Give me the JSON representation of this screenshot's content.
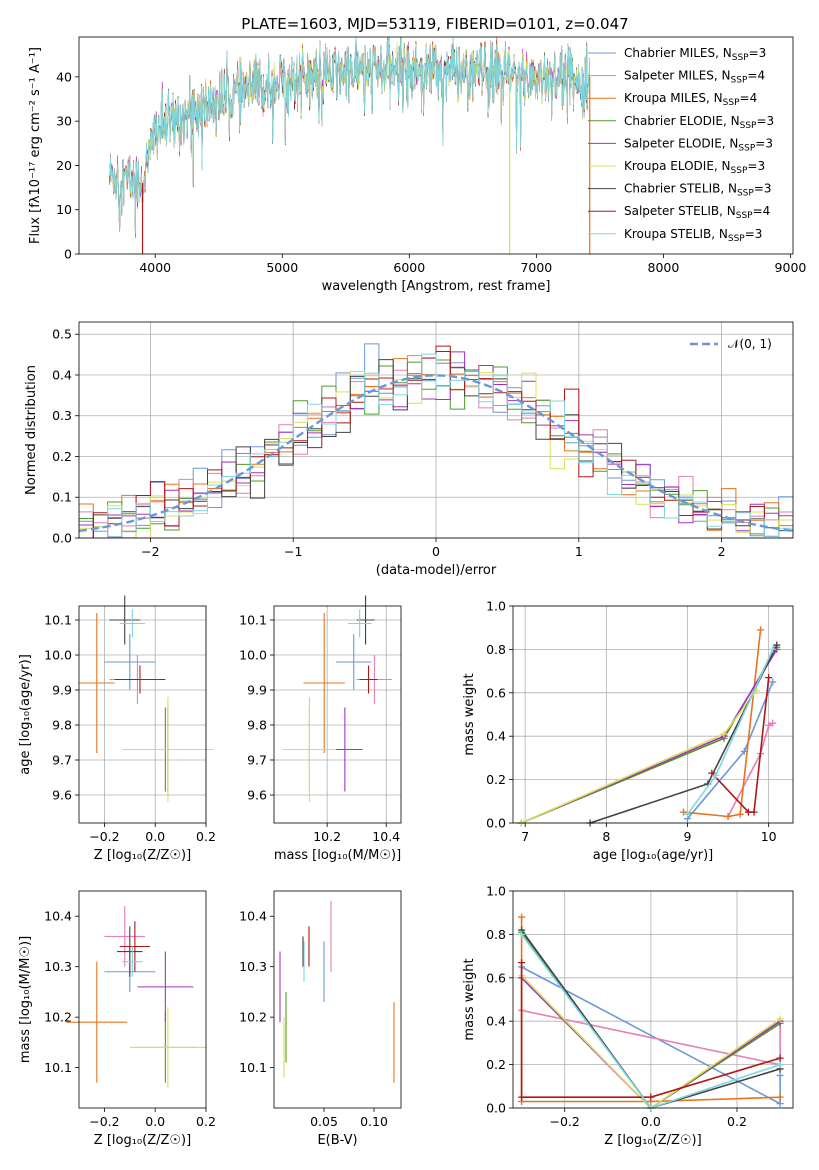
{
  "title": "PLATE=1603, MJD=53119, FIBERID=0101, z=0.047",
  "models": [
    {
      "name": "Chabrier MILES",
      "nssp": "3",
      "color": "#6b97d8"
    },
    {
      "name": "Salpeter MILES",
      "nssp": "4",
      "color": "#e57fb6"
    },
    {
      "name": "Kroupa MILES",
      "nssp": "4",
      "color": "#e8731c"
    },
    {
      "name": "Chabrier ELODIE",
      "nssp": "3",
      "color": "#4f9a2e"
    },
    {
      "name": "Salpeter ELODIE",
      "nssp": "3",
      "color": "#a531c2"
    },
    {
      "name": "Kroupa ELODIE",
      "nssp": "3",
      "color": "#d9e057"
    },
    {
      "name": "Chabrier STELIB",
      "nssp": "3",
      "color": "#444444"
    },
    {
      "name": "Salpeter STELIB",
      "nssp": "4",
      "color": "#b01818"
    },
    {
      "name": "Kroupa STELIB",
      "nssp": "3",
      "color": "#7dd6e0"
    }
  ],
  "legend_nssp_prefix": "N",
  "legend_nssp_sub": "SSP",
  "chart_data": [
    {
      "id": "spectrum",
      "type": "line",
      "xlabel": "wavelength [Angstrom, rest frame]",
      "ylabel": "Flux [fλ10⁻¹⁷ erg cm⁻² s⁻¹ A⁻¹]",
      "xlim": [
        3400,
        9020
      ],
      "ylim": [
        0,
        49
      ],
      "xticks": [
        4000,
        5000,
        6000,
        7000,
        8000,
        9000
      ],
      "yticks": [
        0,
        10,
        20,
        30,
        40
      ],
      "x_range_data": [
        3640,
        7420
      ],
      "continuum_anchor_points": [
        [
          3640,
          18
        ],
        [
          3900,
          16
        ],
        [
          4000,
          28
        ],
        [
          4300,
          32
        ],
        [
          4600,
          36
        ],
        [
          5000,
          39
        ],
        [
          5500,
          41
        ],
        [
          6000,
          42
        ],
        [
          6500,
          41
        ],
        [
          7000,
          40
        ],
        [
          7420,
          40
        ]
      ],
      "spikes": [
        [
          3900,
          0
        ],
        [
          6790,
          0
        ],
        [
          7420,
          0
        ]
      ],
      "legend_placement": "top-right",
      "grid": false
    },
    {
      "id": "residuals",
      "type": "histogram",
      "xlabel": "(data-model)/error",
      "ylabel": "Normed distribution",
      "xlim": [
        -2.5,
        2.5
      ],
      "ylim": [
        0,
        0.53
      ],
      "xticks": [
        -2,
        -1,
        0,
        1,
        2
      ],
      "yticks": [
        0.0,
        0.1,
        0.2,
        0.3,
        0.4,
        0.5
      ],
      "reference_curve": "𝒩(0, 1)",
      "reference_color": "#6b97d8",
      "bin_width": 0.1,
      "legend_placement": "top-right",
      "grid": true
    },
    {
      "id": "age_vs_Z",
      "type": "errorbar",
      "xlabel": "Z [log₁₀(Z/Z☉)]",
      "ylabel": "age  [log₁₀(age/yr)]",
      "xlim": [
        -0.3,
        0.2
      ],
      "ylim": [
        9.52,
        10.14
      ],
      "xticks": [
        -0.2,
        0.0,
        0.2
      ],
      "yticks": [
        9.6,
        9.7,
        9.8,
        9.9,
        10.0,
        10.1
      ],
      "points": [
        {
          "x": -0.1,
          "y": 9.98,
          "xerr": 0.1,
          "yerr": 0.08
        },
        {
          "x": -0.07,
          "y": 9.93,
          "xerr": 0.11,
          "yerr": 0.07
        },
        {
          "x": -0.23,
          "y": 9.92,
          "xerr": 0.07,
          "yerr": 0.2
        },
        {
          "x": 0.04,
          "y": 9.73,
          "xerr": 0.16,
          "yerr": 0.12
        },
        {
          "x": 0.05,
          "y": 9.73,
          "xerr": 0.13,
          "yerr": 0.12
        },
        {
          "x": 0.05,
          "y": 9.73,
          "xerr": 0.18,
          "yerr": 0.15
        },
        {
          "x": -0.12,
          "y": 10.1,
          "xerr": 0.06,
          "yerr": 0.07
        },
        {
          "x": -0.06,
          "y": 9.93,
          "xerr": 0.1,
          "yerr": 0.04
        },
        {
          "x": -0.09,
          "y": 10.09,
          "xerr": 0.05,
          "yerr": 0.04
        }
      ],
      "grid": true
    },
    {
      "id": "age_vs_mass",
      "type": "errorbar",
      "xlabel": "mass [log₁₀(M/M☉)]",
      "ylabel": "",
      "xlim": [
        10.02,
        10.45
      ],
      "ylim": [
        9.52,
        10.14
      ],
      "xticks": [
        10.2,
        10.4
      ],
      "yticks": [
        9.6,
        9.7,
        9.8,
        9.9,
        10.0,
        10.1
      ],
      "points": [
        {
          "x": 10.29,
          "y": 9.98,
          "xerr": 0.06,
          "yerr": 0.08
        },
        {
          "x": 10.36,
          "y": 9.93,
          "xerr": 0.06,
          "yerr": 0.07
        },
        {
          "x": 10.19,
          "y": 9.92,
          "xerr": 0.07,
          "yerr": 0.2
        },
        {
          "x": 10.14,
          "y": 9.73,
          "xerr": 0.09,
          "yerr": 0.12
        },
        {
          "x": 10.26,
          "y": 9.73,
          "xerr": 0.06,
          "yerr": 0.12
        },
        {
          "x": 10.14,
          "y": 9.73,
          "xerr": 0.09,
          "yerr": 0.15
        },
        {
          "x": 10.33,
          "y": 10.1,
          "xerr": 0.03,
          "yerr": 0.07
        },
        {
          "x": 10.34,
          "y": 9.93,
          "xerr": 0.03,
          "yerr": 0.04
        },
        {
          "x": 10.31,
          "y": 10.09,
          "xerr": 0.04,
          "yerr": 0.04
        }
      ],
      "grid": true
    },
    {
      "id": "mass_weight_vs_age",
      "type": "line",
      "xlabel": "age  [log₁₀(age/yr)]",
      "ylabel": "mass weight",
      "xlim": [
        6.85,
        10.3
      ],
      "ylim": [
        0,
        1.0
      ],
      "xticks": [
        7,
        8,
        9,
        10
      ],
      "yticks": [
        0.0,
        0.2,
        0.4,
        0.6,
        0.8,
        1.0
      ],
      "series": [
        {
          "x": [
            9.0,
            9.7,
            10.05
          ],
          "y": [
            0.02,
            0.33,
            0.65
          ]
        },
        {
          "x": [
            9.5,
            9.9,
            10.0,
            10.05
          ],
          "y": [
            0.03,
            0.32,
            0.45,
            0.46
          ]
        },
        {
          "x": [
            8.95,
            9.5,
            9.65,
            9.9
          ],
          "y": [
            0.05,
            0.03,
            0.04,
            0.89
          ]
        },
        {
          "x": [
            6.95,
            9.45,
            10.1
          ],
          "y": [
            0.0,
            0.39,
            0.81
          ]
        },
        {
          "x": [
            6.95,
            9.45,
            10.1
          ],
          "y": [
            0.0,
            0.4,
            0.8
          ]
        },
        {
          "x": [
            6.95,
            9.45,
            9.85
          ],
          "y": [
            0.0,
            0.41,
            0.61
          ]
        },
        {
          "x": [
            7.8,
            9.25,
            10.1
          ],
          "y": [
            0.0,
            0.18,
            0.82
          ]
        },
        {
          "x": [
            9.3,
            9.75,
            9.82,
            10.0
          ],
          "y": [
            0.23,
            0.05,
            0.05,
            0.67
          ]
        },
        {
          "x": [
            9.0,
            9.35,
            10.05
          ],
          "y": [
            0.04,
            0.22,
            0.8
          ]
        }
      ],
      "grid": true
    },
    {
      "id": "mass_vs_Z",
      "type": "errorbar",
      "xlabel": "Z [log₁₀(Z/Z☉)]",
      "ylabel": "mass [log₁₀(M/M☉)]",
      "xlim": [
        -0.3,
        0.2
      ],
      "ylim": [
        10.02,
        10.45
      ],
      "xticks": [
        -0.2,
        0.0,
        0.2
      ],
      "yticks": [
        10.1,
        10.2,
        10.3,
        10.4
      ],
      "points": [
        {
          "x": -0.1,
          "y": 10.29,
          "xerr": 0.1,
          "yerr": 0.04
        },
        {
          "x": -0.12,
          "y": 10.36,
          "xerr": 0.08,
          "yerr": 0.06
        },
        {
          "x": -0.23,
          "y": 10.19,
          "xerr": 0.12,
          "yerr": 0.12
        },
        {
          "x": 0.04,
          "y": 10.14,
          "xerr": 0.12,
          "yerr": 0.07
        },
        {
          "x": 0.04,
          "y": 10.26,
          "xerr": 0.11,
          "yerr": 0.07
        },
        {
          "x": 0.05,
          "y": 10.14,
          "xerr": 0.15,
          "yerr": 0.08
        },
        {
          "x": -0.1,
          "y": 10.33,
          "xerr": 0.05,
          "yerr": 0.05
        },
        {
          "x": -0.08,
          "y": 10.34,
          "xerr": 0.06,
          "yerr": 0.05
        },
        {
          "x": -0.09,
          "y": 10.31,
          "xerr": 0.04,
          "yerr": 0.03
        }
      ],
      "grid": false
    },
    {
      "id": "mass_vs_EBV",
      "type": "errorbar",
      "xlabel": "E(B-V)",
      "ylabel": "",
      "xlim": [
        0.0,
        0.127
      ],
      "ylim": [
        10.02,
        10.45
      ],
      "xticks": [
        0.05,
        0.1
      ],
      "yticks": [
        10.1,
        10.2,
        10.3,
        10.4
      ],
      "points": [
        {
          "x": 0.05,
          "y": 10.29,
          "xerr": 0.0,
          "yerr": 0.06
        },
        {
          "x": 0.057,
          "y": 10.36,
          "xerr": 0.0,
          "yerr": 0.07
        },
        {
          "x": 0.12,
          "y": 10.15,
          "xerr": 0.0,
          "yerr": 0.08
        },
        {
          "x": 0.012,
          "y": 10.18,
          "xerr": 0.0,
          "yerr": 0.07
        },
        {
          "x": 0.006,
          "y": 10.26,
          "xerr": 0.0,
          "yerr": 0.07
        },
        {
          "x": 0.01,
          "y": 10.14,
          "xerr": 0.0,
          "yerr": 0.06
        },
        {
          "x": 0.029,
          "y": 10.33,
          "xerr": 0.0,
          "yerr": 0.03
        },
        {
          "x": 0.035,
          "y": 10.34,
          "xerr": 0.0,
          "yerr": 0.04
        },
        {
          "x": 0.03,
          "y": 10.31,
          "xerr": 0.0,
          "yerr": 0.04
        }
      ],
      "grid": false
    },
    {
      "id": "mass_weight_vs_Z",
      "type": "line",
      "xlabel": "Z [log₁₀(Z/Z☉)]",
      "ylabel": "mass weight",
      "xlim": [
        -0.32,
        0.33
      ],
      "ylim": [
        0,
        1.0
      ],
      "xticks": [
        -0.2,
        0.0,
        0.2
      ],
      "yticks": [
        0.0,
        0.2,
        0.4,
        0.6,
        0.8,
        1.0
      ],
      "series": [
        {
          "x": [
            -0.3,
            0.3,
            0.3
          ],
          "y": [
            0.65,
            0.02,
            0.15
          ]
        },
        {
          "x": [
            -0.3,
            0.3,
            0.3,
            0.0
          ],
          "y": [
            0.45,
            0.2,
            0.4,
            0.0
          ]
        },
        {
          "x": [
            -0.3,
            -0.3,
            0.0,
            0.3
          ],
          "y": [
            0.88,
            0.03,
            0.03,
            0.05
          ]
        },
        {
          "x": [
            -0.3,
            0.0,
            0.3
          ],
          "y": [
            0.81,
            0.0,
            0.39
          ]
        },
        {
          "x": [
            -0.3,
            0.0,
            0.3
          ],
          "y": [
            0.6,
            0.0,
            0.4
          ]
        },
        {
          "x": [
            -0.3,
            0.0,
            0.3
          ],
          "y": [
            0.61,
            0.0,
            0.41
          ]
        },
        {
          "x": [
            -0.3,
            0.0,
            0.3
          ],
          "y": [
            0.82,
            0.0,
            0.18
          ]
        },
        {
          "x": [
            -0.3,
            -0.3,
            0.0,
            0.3
          ],
          "y": [
            0.67,
            0.05,
            0.05,
            0.23
          ]
        },
        {
          "x": [
            -0.3,
            0.0,
            0.3
          ],
          "y": [
            0.8,
            0.0,
            0.2
          ]
        }
      ],
      "grid": true
    }
  ]
}
